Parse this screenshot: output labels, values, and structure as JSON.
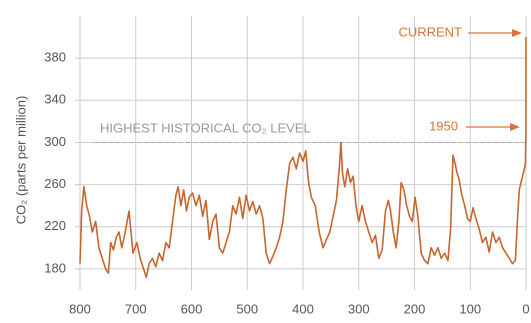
{
  "chart_data": {
    "type": "line",
    "y_label": "CO₂ (parts per million)",
    "reference_label": "HIGHEST HISTORICAL CO₂ LEVEL",
    "reference_value": 300,
    "annotations": [
      "CURRENT",
      "1950"
    ],
    "color": "#c8652e",
    "x": [
      800,
      797,
      793,
      788,
      783,
      778,
      772,
      766,
      760,
      754,
      749,
      745,
      740,
      735,
      730,
      725,
      720,
      712,
      705,
      698,
      692,
      686,
      681,
      676,
      670,
      664,
      658,
      652,
      646,
      640,
      634,
      628,
      624,
      619,
      614,
      609,
      604,
      598,
      592,
      586,
      580,
      574,
      568,
      562,
      556,
      550,
      544,
      538,
      532,
      526,
      520,
      514,
      508,
      502,
      496,
      490,
      484,
      478,
      472,
      466,
      460,
      454,
      448,
      442,
      436,
      430,
      424,
      418,
      412,
      406,
      400,
      395,
      390,
      385,
      378,
      371,
      364,
      358,
      352,
      346,
      340,
      335,
      332,
      329,
      325,
      320,
      315,
      310,
      305,
      300,
      294,
      288,
      282,
      276,
      270,
      264,
      258,
      252,
      247,
      243,
      238,
      233,
      228,
      224,
      219,
      214,
      209,
      204,
      199,
      194,
      188,
      182,
      176,
      170,
      164,
      158,
      152,
      146,
      140,
      135,
      131,
      128,
      124,
      120,
      115,
      110,
      105,
      100,
      95,
      90,
      84,
      78,
      72,
      66,
      60,
      54,
      48,
      42,
      36,
      30,
      24,
      19,
      15,
      12,
      9,
      6,
      3,
      1,
      0.07,
      0
    ],
    "values": [
      185,
      235,
      258,
      240,
      230,
      215,
      225,
      200,
      190,
      180,
      176,
      205,
      198,
      210,
      215,
      200,
      212,
      235,
      195,
      205,
      190,
      180,
      172,
      185,
      190,
      182,
      195,
      188,
      205,
      200,
      225,
      250,
      258,
      240,
      255,
      235,
      248,
      252,
      240,
      250,
      230,
      245,
      208,
      225,
      232,
      200,
      195,
      205,
      215,
      240,
      232,
      248,
      228,
      250,
      235,
      244,
      232,
      240,
      228,
      195,
      185,
      192,
      200,
      210,
      225,
      255,
      280,
      286,
      275,
      290,
      282,
      292,
      262,
      248,
      240,
      215,
      200,
      208,
      215,
      230,
      245,
      275,
      300,
      270,
      258,
      275,
      262,
      268,
      240,
      225,
      240,
      225,
      215,
      205,
      212,
      190,
      198,
      235,
      245,
      235,
      215,
      200,
      225,
      262,
      255,
      240,
      230,
      225,
      248,
      230,
      195,
      188,
      185,
      200,
      193,
      200,
      190,
      195,
      188,
      220,
      288,
      282,
      272,
      265,
      250,
      240,
      228,
      225,
      238,
      228,
      218,
      205,
      210,
      196,
      215,
      205,
      210,
      200,
      195,
      190,
      185,
      188,
      230,
      255,
      262,
      268,
      275,
      280,
      311,
      400
    ],
    "xlim": [
      800,
      0
    ],
    "xticks": [
      800,
      700,
      600,
      500,
      400,
      300,
      200,
      100,
      0
    ],
    "ylim": [
      160,
      420
    ],
    "yticks": [
      180,
      220,
      260,
      300,
      340,
      380
    ],
    "grid": true
  }
}
